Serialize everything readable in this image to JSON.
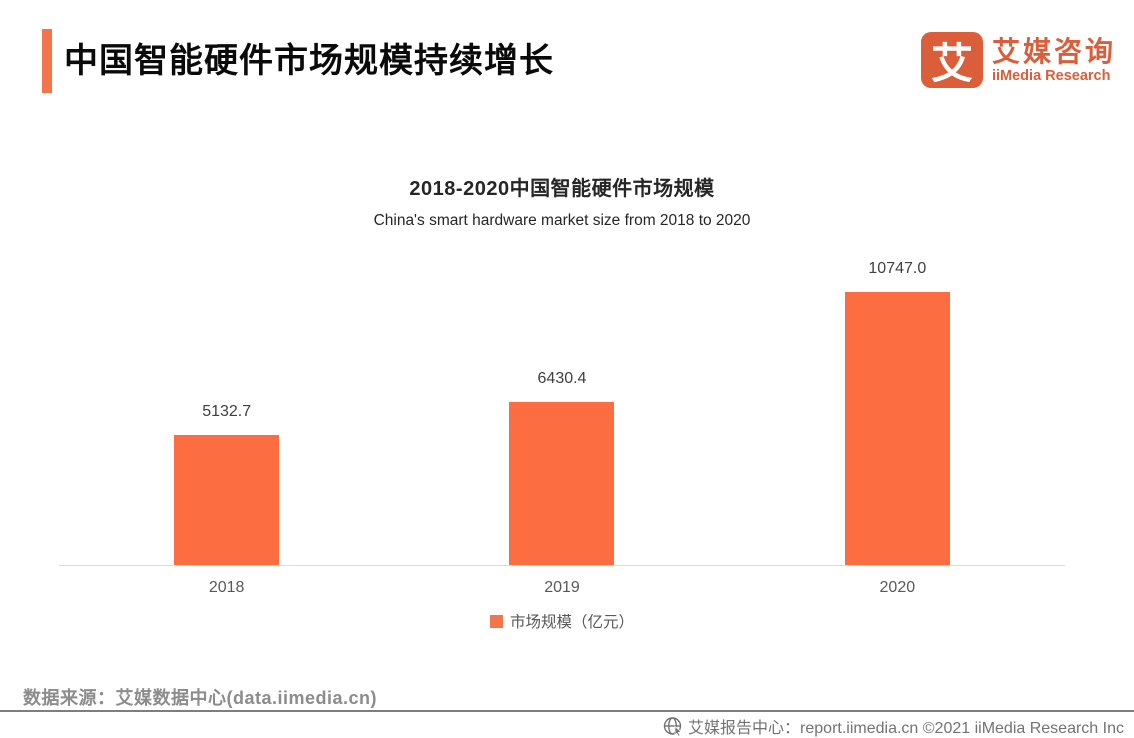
{
  "header": {
    "title": "中国智能硬件市场规模持续增长",
    "logo": {
      "mark": "艾",
      "name_cn": "艾媒咨询",
      "name_en": "iiMedia Research"
    }
  },
  "chart_data": {
    "type": "bar",
    "title": "2018-2020中国智能硬件市场规模",
    "subtitle": "China's smart hardware market size from 2018 to 2020",
    "categories": [
      "2018",
      "2019",
      "2020"
    ],
    "values": [
      5132.7,
      6430.4,
      10747.0
    ],
    "value_labels": [
      "5132.7",
      "6430.4",
      "10747.0"
    ],
    "legend": "市场规模（亿元）",
    "legend_position": "bottom",
    "unit": "亿元",
    "ylim": [
      0,
      11000
    ],
    "grid": false,
    "xlabel": "",
    "ylabel": ""
  },
  "footer": {
    "source": "数据来源：艾媒数据中心(data.iimedia.cn)",
    "credit": "艾媒报告中心：report.iimedia.cn ©2021  iiMedia Research Inc"
  },
  "colors": {
    "bar": "#FC6E41",
    "accent": "#F4744C",
    "logo": "#DB5E3B"
  }
}
